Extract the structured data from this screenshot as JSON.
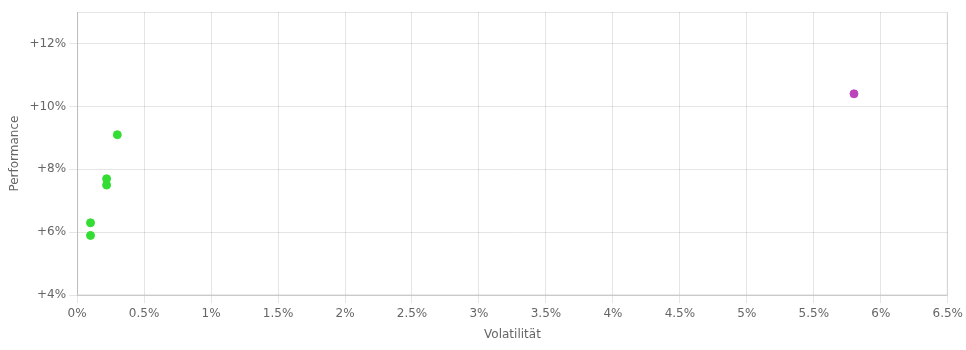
{
  "chart_data": {
    "type": "scatter",
    "xlabel": "Volatilität",
    "ylabel": "Performance",
    "xlim": [
      0.0,
      0.065
    ],
    "ylim": [
      0.04,
      0.13
    ],
    "xticks": [
      {
        "value": 0.0,
        "label": "0%"
      },
      {
        "value": 0.005,
        "label": "0.5%"
      },
      {
        "value": 0.01,
        "label": "1%"
      },
      {
        "value": 0.015,
        "label": "1.5%"
      },
      {
        "value": 0.02,
        "label": "2%"
      },
      {
        "value": 0.025,
        "label": "2.5%"
      },
      {
        "value": 0.03,
        "label": "3%"
      },
      {
        "value": 0.035,
        "label": "3.5%"
      },
      {
        "value": 0.04,
        "label": "4%"
      },
      {
        "value": 0.045,
        "label": "4.5%"
      },
      {
        "value": 0.05,
        "label": "5%"
      },
      {
        "value": 0.055,
        "label": "5.5%"
      },
      {
        "value": 0.06,
        "label": "6%"
      },
      {
        "value": 0.065,
        "label": "6.5%"
      }
    ],
    "yticks": [
      {
        "value": 0.04,
        "label": "+4%"
      },
      {
        "value": 0.06,
        "label": "+6%"
      },
      {
        "value": 0.08,
        "label": "+8%"
      },
      {
        "value": 0.1,
        "label": "+10%"
      },
      {
        "value": 0.12,
        "label": "+12%"
      }
    ],
    "grid": true,
    "series": [
      {
        "color": "#33dd33",
        "x": [
          0.003,
          0.0022,
          0.0022,
          0.001,
          0.001
        ],
        "values": [
          0.091,
          0.077,
          0.075,
          0.063,
          0.059
        ]
      },
      {
        "color": "#bb44bb",
        "x": [
          0.058
        ],
        "values": [
          0.104
        ]
      }
    ]
  }
}
